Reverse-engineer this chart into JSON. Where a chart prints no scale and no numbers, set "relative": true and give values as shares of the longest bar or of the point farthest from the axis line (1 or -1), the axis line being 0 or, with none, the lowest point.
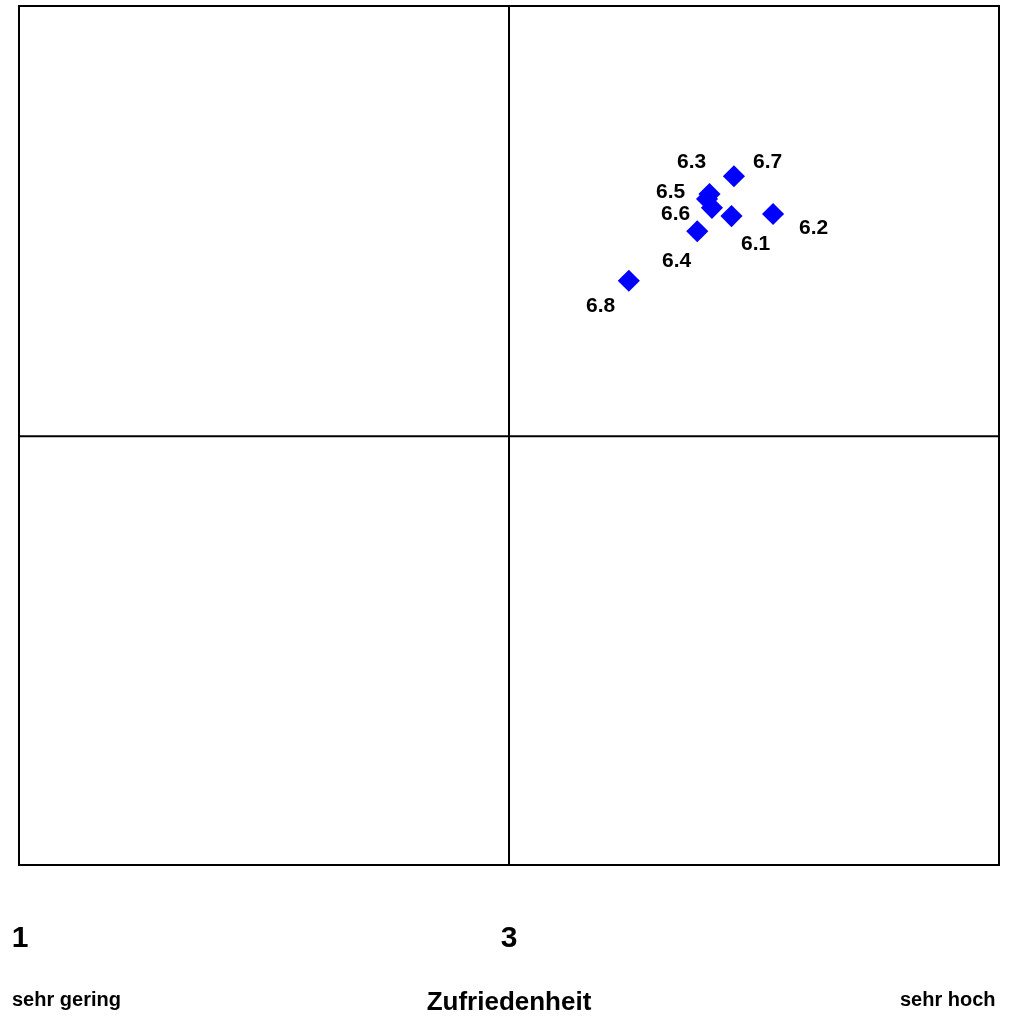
{
  "chart_data": {
    "type": "scatter",
    "xlabel": "Zufriedenheit",
    "relative": true,
    "xlim": [
      1,
      5
    ],
    "xticks": [
      1,
      3
    ],
    "grid": false,
    "legend": false,
    "marker": "diamond",
    "series": [
      {
        "color": "#0000ff",
        "x": [
          3.91,
          4.08,
          3.82,
          3.77,
          3.81,
          3.83,
          3.92,
          3.49
        ],
        "values": [
          0.942,
          0.945,
          0.974,
          0.92,
          0.967,
          0.954,
          1.0,
          0.848
        ]
      }
    ],
    "ref_lines": [
      {
        "axis": "x",
        "value": 3,
        "color": "#000000"
      },
      {
        "axis": "y",
        "value": 0.622,
        "color": "#000000"
      }
    ],
    "annotations": [
      {
        "text": "6.1",
        "x": 3.91,
        "y": 0.942
      },
      {
        "text": "6.2",
        "x": 4.08,
        "y": 0.945
      },
      {
        "text": "6.3",
        "x": 3.82,
        "y": 0.974
      },
      {
        "text": "6.4",
        "x": 3.77,
        "y": 0.92
      },
      {
        "text": "6.5",
        "x": 3.81,
        "y": 0.967
      },
      {
        "text": "6.6",
        "x": 3.83,
        "y": 0.954
      },
      {
        "text": "6.7",
        "x": 3.92,
        "y": 1.0
      },
      {
        "text": "6.8",
        "x": 3.49,
        "y": 0.848
      },
      "sehr gering",
      "sehr hoch"
    ]
  }
}
